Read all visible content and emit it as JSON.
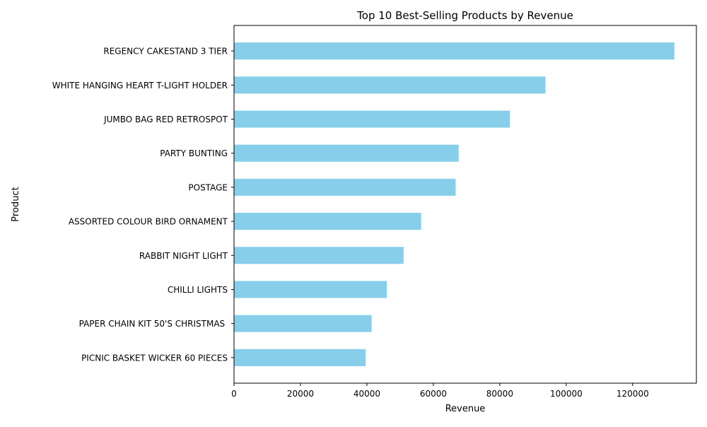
{
  "colors": {
    "bar": "#87ceeb",
    "axis": "#000000",
    "background": "#ffffff"
  },
  "chart_data": {
    "type": "bar",
    "orientation": "horizontal",
    "title": "Top 10 Best-Selling Products by Revenue",
    "xlabel": "Revenue",
    "ylabel": "Product",
    "categories": [
      "REGENCY CAKESTAND 3 TIER",
      "WHITE HANGING HEART T-LIGHT HOLDER",
      "JUMBO BAG RED RETROSPOT",
      "PARTY BUNTING",
      "POSTAGE",
      "ASSORTED COLOUR BIRD ORNAMENT",
      "RABBIT NIGHT LIGHT",
      "CHILLI LIGHTS",
      "PAPER CHAIN KIT 50'S CHRISTMAS ",
      "PICNIC BASKET WICKER 60 PIECES"
    ],
    "values": [
      132567,
      93767,
      83056,
      67628,
      66710,
      56331,
      51042,
      46003,
      41424,
      39619
    ],
    "xlim": [
      0,
      139195
    ],
    "xticks": [
      0,
      20000,
      40000,
      60000,
      80000,
      100000,
      120000
    ],
    "xtick_labels": [
      "0",
      "20000",
      "40000",
      "60000",
      "80000",
      "100000",
      "120000"
    ],
    "grid": false,
    "legend": "none"
  }
}
